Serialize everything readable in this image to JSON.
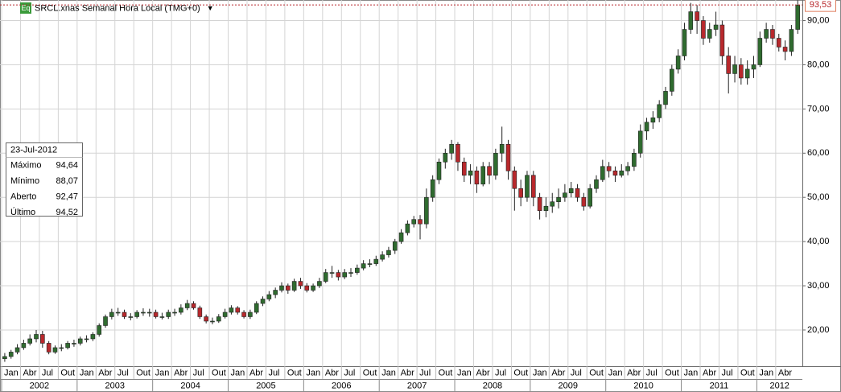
{
  "chart_data": {
    "type": "candlestick",
    "icon": "Eq",
    "title": "SRCL.xnas Semanal Hora Local (TMG+0)",
    "up_color": "#2f6b2f",
    "down_color": "#b8282c",
    "grid": true,
    "x": [
      "2002-01",
      "2002-02",
      "2002-03",
      "2002-04",
      "2002-05",
      "2002-06",
      "2002-07",
      "2002-08",
      "2002-09",
      "2002-10",
      "2002-11",
      "2002-12",
      "2003-01",
      "2003-02",
      "2003-03",
      "2003-04",
      "2003-05",
      "2003-06",
      "2003-07",
      "2003-08",
      "2003-09",
      "2003-10",
      "2003-11",
      "2003-12",
      "2004-01",
      "2004-02",
      "2004-03",
      "2004-04",
      "2004-05",
      "2004-06",
      "2004-07",
      "2004-08",
      "2004-09",
      "2004-10",
      "2004-11",
      "2004-12",
      "2005-01",
      "2005-02",
      "2005-03",
      "2005-04",
      "2005-05",
      "2005-06",
      "2005-07",
      "2005-08",
      "2005-09",
      "2005-10",
      "2005-11",
      "2005-12",
      "2006-01",
      "2006-02",
      "2006-03",
      "2006-04",
      "2006-05",
      "2006-06",
      "2006-07",
      "2006-08",
      "2006-09",
      "2006-10",
      "2006-11",
      "2006-12",
      "2007-01",
      "2007-02",
      "2007-03",
      "2007-04",
      "2007-05",
      "2007-06",
      "2007-07",
      "2007-08",
      "2007-09",
      "2007-10",
      "2007-11",
      "2007-12",
      "2008-01",
      "2008-02",
      "2008-03",
      "2008-04",
      "2008-05",
      "2008-06",
      "2008-07",
      "2008-08",
      "2008-09",
      "2008-10",
      "2008-11",
      "2008-12",
      "2009-01",
      "2009-02",
      "2009-03",
      "2009-04",
      "2009-05",
      "2009-06",
      "2009-07",
      "2009-08",
      "2009-09",
      "2009-10",
      "2009-11",
      "2009-12",
      "2010-01",
      "2010-02",
      "2010-03",
      "2010-04",
      "2010-05",
      "2010-06",
      "2010-07",
      "2010-08",
      "2010-09",
      "2010-10",
      "2010-11",
      "2010-12",
      "2011-01",
      "2011-02",
      "2011-03",
      "2011-04",
      "2011-05",
      "2011-06",
      "2011-07",
      "2011-08",
      "2011-09",
      "2011-10",
      "2011-11",
      "2011-12",
      "2012-01",
      "2012-02",
      "2012-03",
      "2012-04",
      "2012-05",
      "2012-06",
      "2012-07"
    ],
    "open": [
      13.5,
      14,
      15,
      16,
      17,
      18,
      19,
      17,
      15,
      16,
      16,
      17,
      17,
      18,
      18,
      19,
      21,
      23,
      24,
      24,
      23,
      23,
      24,
      24,
      24,
      23,
      23,
      24,
      24,
      25,
      26,
      25,
      23,
      22,
      22,
      23,
      24,
      25,
      24,
      23,
      24,
      26,
      27,
      28,
      29,
      30,
      29,
      31,
      30,
      29,
      30,
      31,
      33,
      33,
      32,
      33,
      33,
      34,
      35,
      35,
      36,
      37,
      38,
      40,
      42,
      44,
      45,
      44,
      50,
      54,
      58,
      60,
      62,
      58,
      55,
      56,
      53,
      57,
      55,
      60,
      62,
      56,
      52,
      50,
      55,
      50,
      47,
      48,
      49,
      50,
      51,
      52,
      50,
      48,
      52,
      54,
      57,
      56,
      55,
      56,
      57,
      60,
      65,
      67,
      68,
      71,
      74,
      79,
      82,
      88,
      92,
      90,
      86,
      88,
      89,
      82,
      78,
      80,
      77,
      79,
      80,
      86,
      88,
      86,
      84,
      83,
      88
    ],
    "high": [
      14.8,
      15.5,
      16.8,
      17.8,
      19,
      20,
      19.8,
      17.5,
      16.5,
      16.8,
      17.5,
      17.8,
      18.5,
      18.8,
      19.5,
      21.5,
      23.5,
      24.8,
      25,
      24.6,
      23.8,
      24.5,
      24.9,
      24.8,
      24.6,
      23.9,
      24.6,
      24.8,
      25.8,
      26.8,
      26.5,
      25.5,
      23.5,
      22.8,
      23.6,
      24.8,
      25.6,
      25.4,
      24.5,
      24.6,
      26.5,
      27.6,
      28.8,
      29.6,
      30.8,
      30.5,
      31.6,
      31.8,
      30.6,
      30.5,
      31.8,
      33.8,
      34.5,
      33.6,
      33.8,
      34,
      34.8,
      35.8,
      36,
      36.8,
      37.8,
      38.8,
      40.6,
      42.8,
      44.8,
      45.8,
      46,
      52,
      55,
      58.8,
      61,
      63,
      62.5,
      59,
      57.5,
      57,
      58,
      58,
      61,
      66,
      63,
      57,
      54,
      56,
      56,
      51,
      50,
      51,
      52,
      53,
      53.5,
      53,
      51,
      53,
      55,
      58.5,
      58,
      57,
      57.5,
      58,
      61,
      66.5,
      68,
      69.5,
      72,
      75,
      80,
      83.5,
      89.5,
      94,
      93.5,
      91,
      89.5,
      92,
      90,
      84,
      82,
      81.5,
      81,
      82,
      87.5,
      89.5,
      89,
      87,
      85.5,
      89,
      94.6
    ],
    "low": [
      12.8,
      13.5,
      14.5,
      15.5,
      16.5,
      17.2,
      16,
      14.5,
      14.6,
      15.2,
      15.6,
      16.2,
      16.5,
      17.2,
      17.5,
      18.5,
      20.5,
      22.4,
      23.2,
      22.5,
      22.2,
      22.6,
      23.2,
      23,
      22.6,
      22.4,
      22.5,
      23.2,
      23.5,
      24.5,
      24.6,
      22.5,
      21.5,
      21.3,
      21.6,
      22.6,
      23.5,
      23.5,
      22.6,
      22.5,
      23.6,
      25.4,
      26.5,
      27.2,
      28.5,
      28.2,
      28.6,
      29.3,
      28.5,
      28.6,
      29.5,
      30.6,
      31.8,
      31.2,
      31.5,
      32,
      32.5,
      33.5,
      34.2,
      34.5,
      35.5,
      36.4,
      37.2,
      39.5,
      41.4,
      43.2,
      40.5,
      43,
      49,
      53,
      56.5,
      58.5,
      56,
      53.5,
      53,
      51,
      52.5,
      53,
      54,
      58,
      54,
      47,
      48,
      49,
      48,
      45,
      45.5,
      46.5,
      47.5,
      49,
      50,
      49,
      47,
      47.5,
      51,
      53.5,
      54.5,
      53.5,
      54.5,
      55,
      56,
      59,
      63,
      65.5,
      67,
      70,
      73,
      78,
      81,
      87,
      87,
      84.5,
      85,
      86.5,
      80,
      73.5,
      76,
      75.5,
      75.5,
      77,
      79.5,
      85,
      84.5,
      83,
      81,
      82,
      87
    ],
    "close": [
      14,
      15,
      16,
      17,
      18,
      19,
      17,
      15,
      16,
      16,
      17,
      17,
      18,
      18,
      19,
      21,
      23,
      24,
      24,
      23,
      23,
      24,
      24,
      24,
      23,
      23,
      24,
      24,
      25,
      26,
      25,
      23,
      22,
      22,
      23,
      24,
      25,
      24,
      23,
      24,
      26,
      27,
      28,
      29,
      30,
      29,
      31,
      30,
      29,
      30,
      31,
      33,
      33,
      32,
      33,
      33,
      34,
      35,
      35,
      36,
      37,
      38,
      40,
      42,
      44,
      45,
      44,
      50,
      54,
      58,
      60,
      62,
      58,
      55,
      56,
      53,
      57,
      55,
      60,
      62,
      56,
      52,
      50,
      55,
      50,
      47,
      48,
      49,
      50,
      51,
      52,
      50,
      48,
      52,
      54,
      57,
      56,
      55,
      56,
      57,
      60,
      65,
      67,
      68,
      71,
      74,
      79,
      82,
      88,
      92,
      90,
      86,
      88,
      89,
      82,
      78,
      80,
      77,
      79,
      80,
      86,
      88,
      86,
      84,
      83,
      88,
      93.5
    ],
    "ylim": [
      11.8,
      94.65
    ],
    "yticks": [
      {
        "value": 20,
        "label": "20,00"
      },
      {
        "value": 30,
        "label": "30,00"
      },
      {
        "value": 40,
        "label": "40,00"
      },
      {
        "value": 50,
        "label": "50,00"
      },
      {
        "value": 60,
        "label": "60,00"
      },
      {
        "value": 70,
        "label": "70,00"
      },
      {
        "value": 80,
        "label": "80,00"
      },
      {
        "value": 90,
        "label": "90,00"
      }
    ],
    "xticks": [
      {
        "value": "2002-01",
        "label": "Jan"
      },
      {
        "value": "2002-04",
        "label": "Abr"
      },
      {
        "value": "2002-07",
        "label": "Jul"
      },
      {
        "value": "2002-10",
        "label": "Out"
      },
      {
        "value": "2003-01",
        "label": "Jan"
      },
      {
        "value": "2003-04",
        "label": "Abr"
      },
      {
        "value": "2003-07",
        "label": "Jul"
      },
      {
        "value": "2003-10",
        "label": "Out"
      },
      {
        "value": "2004-01",
        "label": "Jan"
      },
      {
        "value": "2004-04",
        "label": "Abr"
      },
      {
        "value": "2004-07",
        "label": "Jul"
      },
      {
        "value": "2004-10",
        "label": "Out"
      },
      {
        "value": "2005-01",
        "label": "Jan"
      },
      {
        "value": "2005-04",
        "label": "Abr"
      },
      {
        "value": "2005-07",
        "label": "Jul"
      },
      {
        "value": "2005-10",
        "label": "Out"
      },
      {
        "value": "2006-01",
        "label": "Jan"
      },
      {
        "value": "2006-04",
        "label": "Abr"
      },
      {
        "value": "2006-07",
        "label": "Jul"
      },
      {
        "value": "2006-10",
        "label": "Out"
      },
      {
        "value": "2007-01",
        "label": "Jan"
      },
      {
        "value": "2007-04",
        "label": "Abr"
      },
      {
        "value": "2007-07",
        "label": "Jul"
      },
      {
        "value": "2007-10",
        "label": "Out"
      },
      {
        "value": "2008-01",
        "label": "Jan"
      },
      {
        "value": "2008-04",
        "label": "Abr"
      },
      {
        "value": "2008-07",
        "label": "Jul"
      },
      {
        "value": "2008-10",
        "label": "Out"
      },
      {
        "value": "2009-01",
        "label": "Jan"
      },
      {
        "value": "2009-04",
        "label": "Abr"
      },
      {
        "value": "2009-07",
        "label": "Jul"
      },
      {
        "value": "2009-10",
        "label": "Out"
      },
      {
        "value": "2010-01",
        "label": "Jan"
      },
      {
        "value": "2010-04",
        "label": "Abr"
      },
      {
        "value": "2010-07",
        "label": "Jul"
      },
      {
        "value": "2010-10",
        "label": "Out"
      },
      {
        "value": "2011-01",
        "label": "Jan"
      },
      {
        "value": "2011-04",
        "label": "Abr"
      },
      {
        "value": "2011-07",
        "label": "Jul"
      },
      {
        "value": "2011-10",
        "label": "Out"
      },
      {
        "value": "2012-01",
        "label": "Jan"
      },
      {
        "value": "2012-04",
        "label": "Abr"
      }
    ],
    "year_labels": [
      {
        "value": "2002-01",
        "label": "2002"
      },
      {
        "value": "2003-01",
        "label": "2003"
      },
      {
        "value": "2004-01",
        "label": "2004"
      },
      {
        "value": "2005-01",
        "label": "2005"
      },
      {
        "value": "2006-01",
        "label": "2006"
      },
      {
        "value": "2007-01",
        "label": "2007"
      },
      {
        "value": "2008-01",
        "label": "2008"
      },
      {
        "value": "2009-01",
        "label": "2009"
      },
      {
        "value": "2010-01",
        "label": "2010"
      },
      {
        "value": "2011-01",
        "label": "2011"
      },
      {
        "value": "2012-01",
        "label": "2012"
      }
    ],
    "last_price": {
      "value": 93.53,
      "label": "93,53"
    },
    "info_box": {
      "date": "23-Jul-2012",
      "rows": [
        {
          "label": "Máximo",
          "value": "94,64"
        },
        {
          "label": "Mínimo",
          "value": "88,07"
        },
        {
          "label": "Aberto",
          "value": "92,47"
        },
        {
          "label": "Último",
          "value": "94,52"
        }
      ]
    }
  }
}
